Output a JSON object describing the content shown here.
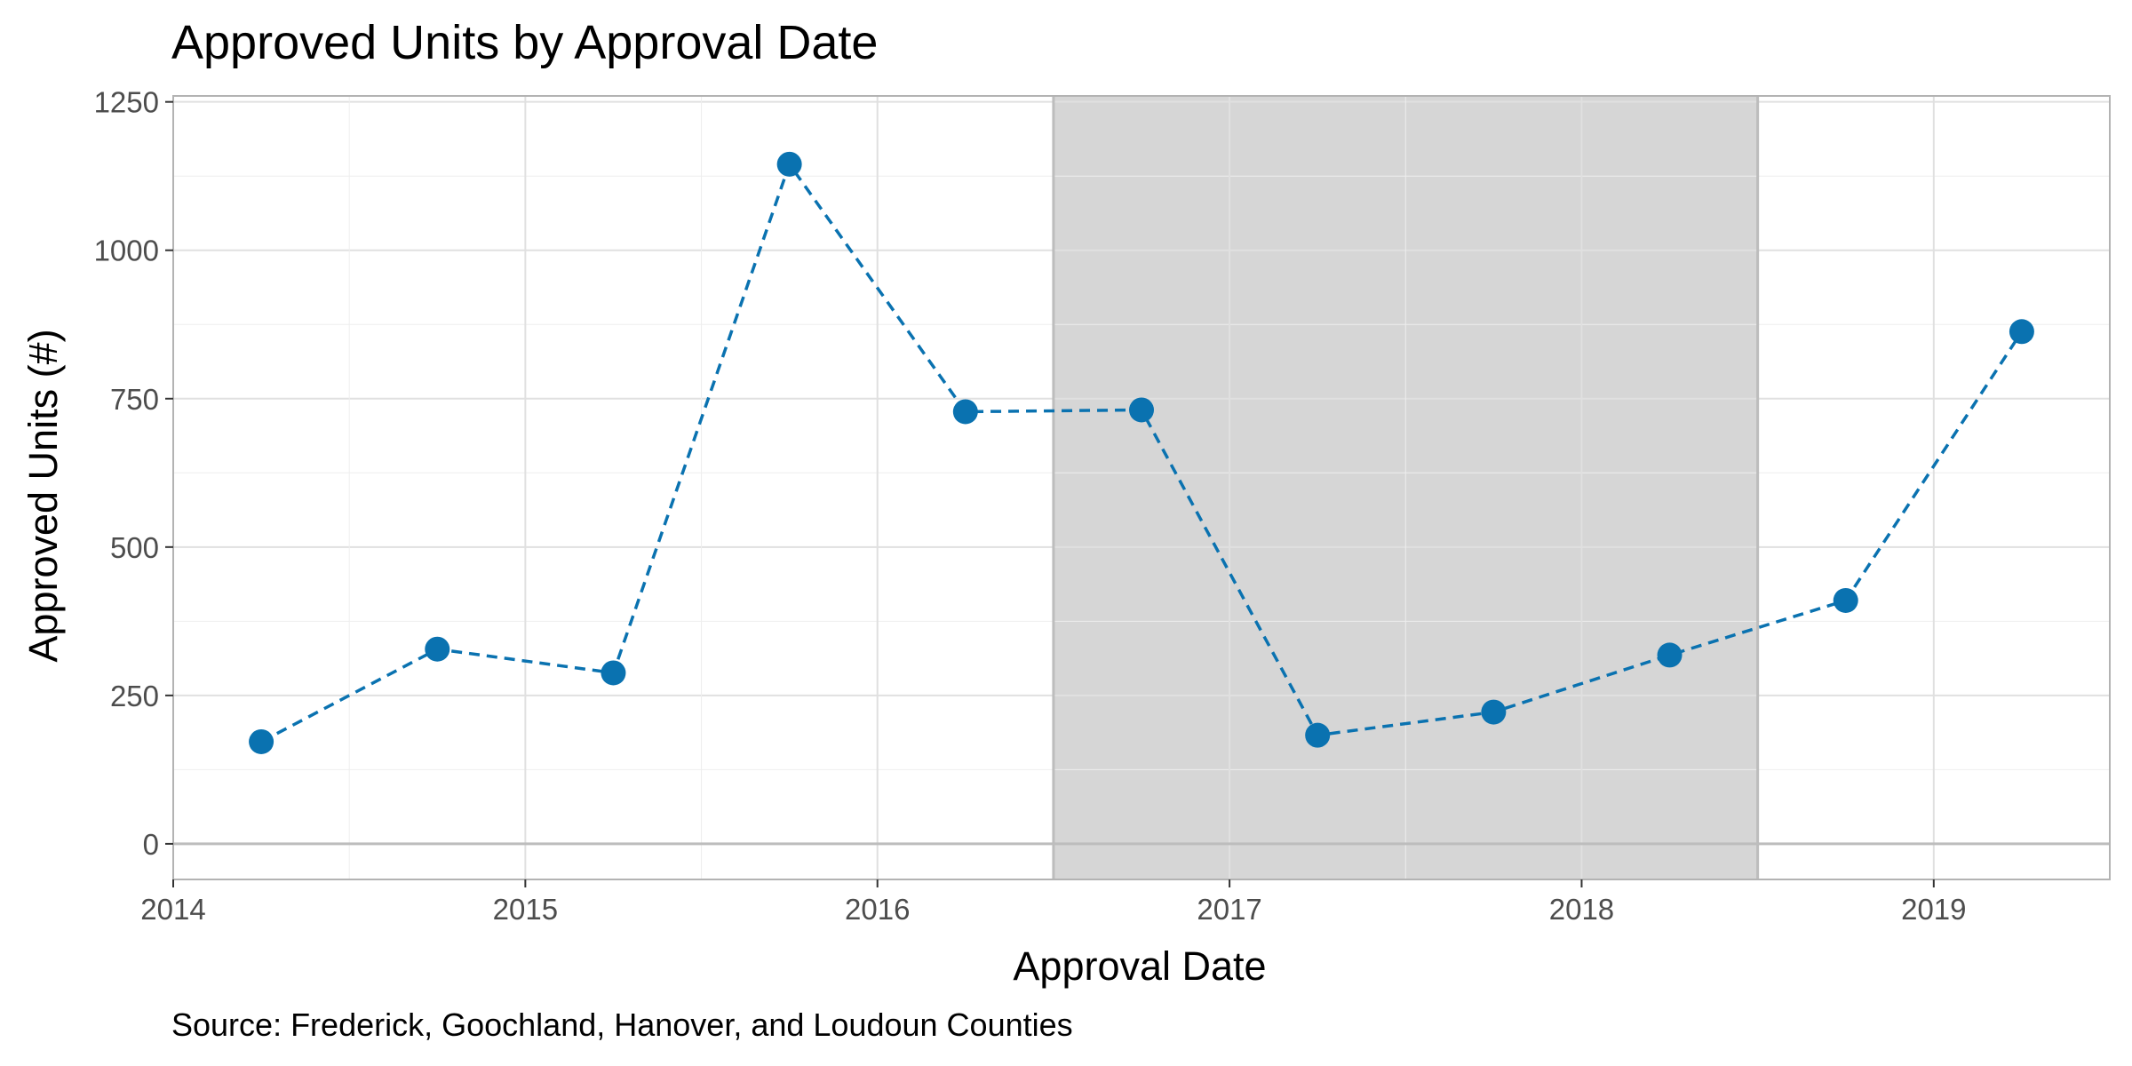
{
  "chart_data": {
    "type": "line",
    "title": "Approved Units by Approval Date",
    "xlabel": "Approval Date",
    "ylabel": "Approved Units (#)",
    "caption": "Source: Frederick, Goochland, Hanover, and Loudoun Counties",
    "xlim": [
      2014.0,
      2019.5
    ],
    "ylim": [
      -60,
      1260
    ],
    "x_ticks": [
      2014,
      2015,
      2016,
      2017,
      2018,
      2019
    ],
    "x_tick_labels": [
      "2014",
      "2015",
      "2016",
      "2017",
      "2018",
      "2019"
    ],
    "y_ticks": [
      0,
      250,
      500,
      750,
      1000,
      1250
    ],
    "y_tick_labels": [
      "0",
      "250",
      "500",
      "750",
      "1000",
      "1250"
    ],
    "grid": true,
    "shaded_region": {
      "x_start": 2016.5,
      "x_end": 2018.5,
      "color": "#d6d6d6"
    },
    "series": [
      {
        "line_style": "dashed",
        "color": "#0a72b0",
        "points": [
          {
            "x": "2014-04",
            "y": 172
          },
          {
            "x": "2014-10",
            "y": 328
          },
          {
            "x": "2015-04",
            "y": 288
          },
          {
            "x": "2015-10",
            "y": 1145
          },
          {
            "x": "2016-04",
            "y": 728
          },
          {
            "x": "2016-10",
            "y": 731
          },
          {
            "x": "2017-04",
            "y": 183
          },
          {
            "x": "2017-10",
            "y": 222
          },
          {
            "x": "2018-04",
            "y": 318
          },
          {
            "x": "2018-10",
            "y": 410
          },
          {
            "x": "2019-04",
            "y": 863
          }
        ]
      }
    ]
  }
}
